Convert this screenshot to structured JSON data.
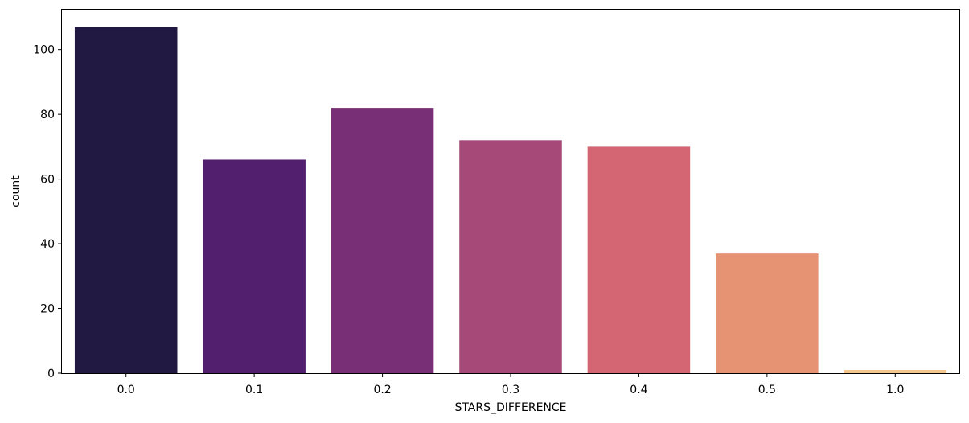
{
  "chart_data": {
    "type": "bar",
    "title": "",
    "xlabel": "STARS_DIFFERENCE",
    "ylabel": "count",
    "categories": [
      "0.0",
      "0.1",
      "0.2",
      "0.3",
      "0.4",
      "0.5",
      "1.0"
    ],
    "values": [
      107,
      66,
      82,
      72,
      70,
      37,
      1
    ],
    "colors": [
      "#221943",
      "#521f6e",
      "#782f76",
      "#a64878",
      "#d46572",
      "#e69374",
      "#f2c78e"
    ],
    "ylim": [
      0,
      112.35
    ],
    "yticks": [
      0,
      20,
      40,
      60,
      80,
      100
    ],
    "grid": false,
    "legend": "none"
  }
}
